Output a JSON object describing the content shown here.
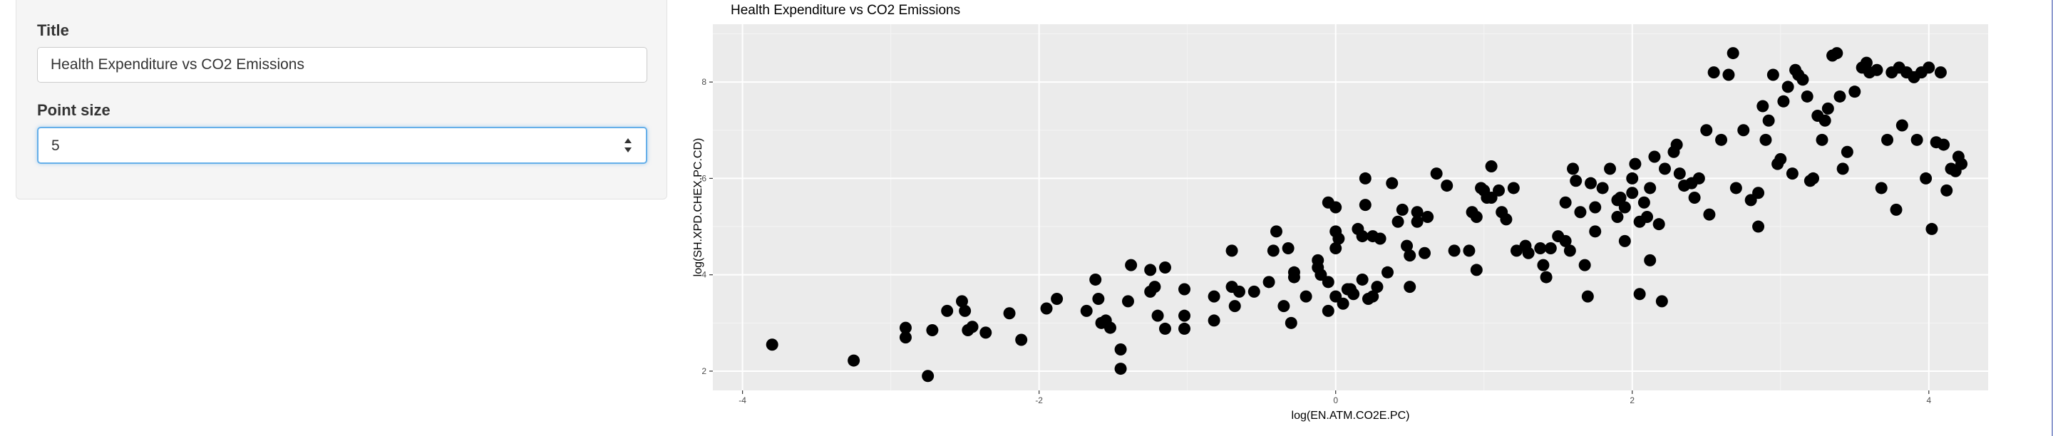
{
  "sidebar": {
    "title_label": "Title",
    "title_value": "Health Expenditure vs CO2 Emissions",
    "point_size_label": "Point size",
    "point_size_value": "5"
  },
  "chart_data": {
    "type": "scatter",
    "title": "Health Expenditure vs CO2 Emissions",
    "xlabel": "log(EN.ATM.CO2E.PC)",
    "ylabel": "log(SH.XPD.CHEX.PC.CD)",
    "xlim": [
      -4.2,
      4.4
    ],
    "ylim": [
      1.6,
      9.2
    ],
    "xticks": [
      -4,
      -2,
      0,
      2,
      4
    ],
    "xtick_labels": [
      "-4",
      "-2",
      "0",
      "2",
      "4"
    ],
    "yticks": [
      2,
      4,
      6,
      8
    ],
    "ytick_labels": [
      "2",
      "4",
      "6",
      "8"
    ],
    "grid": true,
    "background": "#ebebeb",
    "point_color": "#000000",
    "points": [
      [
        -3.8,
        2.55
      ],
      [
        -3.25,
        2.22
      ],
      [
        -2.9,
        2.9
      ],
      [
        -2.9,
        2.7
      ],
      [
        -2.75,
        1.9
      ],
      [
        -2.72,
        2.85
      ],
      [
        -2.62,
        3.25
      ],
      [
        -2.52,
        3.45
      ],
      [
        -2.5,
        3.25
      ],
      [
        -2.45,
        2.92
      ],
      [
        -2.48,
        2.85
      ],
      [
        -2.36,
        2.8
      ],
      [
        -2.2,
        3.2
      ],
      [
        -2.12,
        2.65
      ],
      [
        -1.95,
        3.3
      ],
      [
        -1.88,
        3.5
      ],
      [
        -1.68,
        3.25
      ],
      [
        -1.62,
        3.9
      ],
      [
        -1.6,
        3.5
      ],
      [
        -1.58,
        3.0
      ],
      [
        -1.52,
        2.9
      ],
      [
        -1.55,
        3.05
      ],
      [
        -1.45,
        2.05
      ],
      [
        -1.45,
        2.45
      ],
      [
        -1.4,
        3.45
      ],
      [
        -1.38,
        4.2
      ],
      [
        -1.25,
        3.65
      ],
      [
        -1.22,
        3.75
      ],
      [
        -1.25,
        4.1
      ],
      [
        -1.2,
        3.15
      ],
      [
        -1.15,
        4.15
      ],
      [
        -1.15,
        2.88
      ],
      [
        -1.02,
        3.7
      ],
      [
        -1.02,
        3.15
      ],
      [
        -1.02,
        2.88
      ],
      [
        -0.82,
        3.55
      ],
      [
        -0.82,
        3.05
      ],
      [
        -0.7,
        3.75
      ],
      [
        -0.7,
        4.5
      ],
      [
        -0.68,
        3.35
      ],
      [
        -0.65,
        3.65
      ],
      [
        -0.55,
        3.65
      ],
      [
        -0.45,
        3.85
      ],
      [
        -0.42,
        4.5
      ],
      [
        -0.4,
        4.9
      ],
      [
        -0.35,
        3.35
      ],
      [
        -0.32,
        4.55
      ],
      [
        -0.3,
        3.0
      ],
      [
        -0.28,
        3.95
      ],
      [
        -0.28,
        4.05
      ],
      [
        -0.2,
        3.55
      ],
      [
        -0.12,
        4.15
      ],
      [
        -0.12,
        4.3
      ],
      [
        -0.1,
        4.0
      ],
      [
        -0.05,
        3.25
      ],
      [
        -0.05,
        3.85
      ],
      [
        -0.05,
        5.5
      ],
      [
        0.0,
        4.9
      ],
      [
        0.0,
        5.4
      ],
      [
        0.0,
        3.55
      ],
      [
        0.0,
        4.55
      ],
      [
        0.02,
        4.75
      ],
      [
        0.05,
        3.4
      ],
      [
        0.08,
        3.7
      ],
      [
        0.1,
        3.7
      ],
      [
        0.12,
        3.6
      ],
      [
        0.15,
        4.95
      ],
      [
        0.18,
        3.9
      ],
      [
        0.18,
        4.8
      ],
      [
        0.2,
        6.0
      ],
      [
        0.2,
        5.45
      ],
      [
        0.22,
        3.5
      ],
      [
        0.25,
        4.8
      ],
      [
        0.25,
        3.55
      ],
      [
        0.28,
        3.75
      ],
      [
        0.3,
        4.75
      ],
      [
        0.35,
        4.05
      ],
      [
        0.38,
        5.9
      ],
      [
        0.42,
        5.1
      ],
      [
        0.45,
        5.35
      ],
      [
        0.48,
        4.6
      ],
      [
        0.5,
        3.75
      ],
      [
        0.5,
        4.4
      ],
      [
        0.55,
        5.1
      ],
      [
        0.55,
        5.3
      ],
      [
        0.6,
        4.45
      ],
      [
        0.62,
        5.2
      ],
      [
        0.68,
        6.1
      ],
      [
        0.75,
        5.85
      ],
      [
        0.8,
        4.5
      ],
      [
        0.9,
        4.5
      ],
      [
        0.92,
        5.3
      ],
      [
        0.95,
        4.1
      ],
      [
        0.95,
        5.2
      ],
      [
        0.98,
        5.8
      ],
      [
        1.0,
        5.75
      ],
      [
        1.02,
        5.6
      ],
      [
        1.05,
        6.25
      ],
      [
        1.05,
        5.6
      ],
      [
        1.1,
        5.75
      ],
      [
        1.12,
        5.3
      ],
      [
        1.15,
        5.15
      ],
      [
        1.2,
        5.8
      ],
      [
        1.22,
        4.5
      ],
      [
        1.28,
        4.6
      ],
      [
        1.3,
        4.45
      ],
      [
        1.38,
        4.55
      ],
      [
        1.4,
        4.2
      ],
      [
        1.42,
        3.95
      ],
      [
        1.45,
        4.55
      ],
      [
        1.5,
        4.8
      ],
      [
        1.55,
        4.7
      ],
      [
        1.55,
        5.5
      ],
      [
        1.58,
        4.5
      ],
      [
        1.6,
        6.2
      ],
      [
        1.62,
        5.95
      ],
      [
        1.65,
        5.3
      ],
      [
        1.68,
        4.2
      ],
      [
        1.7,
        3.55
      ],
      [
        1.72,
        5.9
      ],
      [
        1.75,
        5.4
      ],
      [
        1.75,
        4.9
      ],
      [
        1.8,
        5.8
      ],
      [
        1.85,
        6.2
      ],
      [
        1.9,
        5.2
      ],
      [
        1.9,
        5.55
      ],
      [
        1.92,
        5.6
      ],
      [
        1.95,
        5.4
      ],
      [
        1.95,
        4.7
      ],
      [
        2.0,
        5.7
      ],
      [
        2.0,
        6.0
      ],
      [
        2.02,
        6.3
      ],
      [
        2.05,
        3.6
      ],
      [
        2.05,
        5.1
      ],
      [
        2.08,
        5.5
      ],
      [
        2.1,
        5.2
      ],
      [
        2.12,
        4.3
      ],
      [
        2.12,
        5.8
      ],
      [
        2.15,
        6.45
      ],
      [
        2.18,
        5.05
      ],
      [
        2.2,
        3.45
      ],
      [
        2.22,
        6.2
      ],
      [
        2.28,
        6.55
      ],
      [
        2.3,
        6.7
      ],
      [
        2.32,
        6.1
      ],
      [
        2.35,
        5.85
      ],
      [
        2.4,
        5.9
      ],
      [
        2.42,
        5.6
      ],
      [
        2.45,
        6.0
      ],
      [
        2.5,
        7.0
      ],
      [
        2.52,
        5.25
      ],
      [
        2.55,
        8.2
      ],
      [
        2.6,
        6.8
      ],
      [
        2.65,
        8.15
      ],
      [
        2.68,
        8.6
      ],
      [
        2.7,
        5.8
      ],
      [
        2.75,
        7.0
      ],
      [
        2.8,
        5.55
      ],
      [
        2.85,
        5.7
      ],
      [
        2.85,
        5.0
      ],
      [
        2.88,
        7.5
      ],
      [
        2.9,
        6.8
      ],
      [
        2.92,
        7.2
      ],
      [
        2.95,
        8.15
      ],
      [
        2.98,
        6.3
      ],
      [
        3.0,
        6.4
      ],
      [
        3.02,
        7.6
      ],
      [
        3.05,
        7.9
      ],
      [
        3.08,
        6.1
      ],
      [
        3.1,
        8.25
      ],
      [
        3.12,
        8.15
      ],
      [
        3.15,
        8.05
      ],
      [
        3.18,
        7.7
      ],
      [
        3.2,
        5.95
      ],
      [
        3.22,
        6.0
      ],
      [
        3.25,
        7.3
      ],
      [
        3.28,
        6.8
      ],
      [
        3.3,
        7.2
      ],
      [
        3.32,
        7.45
      ],
      [
        3.35,
        8.55
      ],
      [
        3.38,
        8.6
      ],
      [
        3.4,
        7.7
      ],
      [
        3.42,
        6.2
      ],
      [
        3.45,
        6.55
      ],
      [
        3.5,
        7.8
      ],
      [
        3.55,
        8.3
      ],
      [
        3.58,
        8.4
      ],
      [
        3.6,
        8.2
      ],
      [
        3.65,
        8.25
      ],
      [
        3.68,
        5.8
      ],
      [
        3.72,
        6.8
      ],
      [
        3.75,
        8.2
      ],
      [
        3.78,
        5.35
      ],
      [
        3.8,
        8.3
      ],
      [
        3.82,
        7.1
      ],
      [
        3.85,
        8.2
      ],
      [
        3.9,
        8.1
      ],
      [
        3.92,
        6.8
      ],
      [
        3.95,
        8.2
      ],
      [
        3.98,
        6.0
      ],
      [
        4.0,
        8.3
      ],
      [
        4.02,
        4.95
      ],
      [
        4.05,
        6.75
      ],
      [
        4.08,
        8.2
      ],
      [
        4.1,
        6.7
      ],
      [
        4.12,
        5.75
      ],
      [
        4.15,
        6.2
      ],
      [
        4.18,
        6.15
      ],
      [
        4.2,
        6.45
      ],
      [
        4.22,
        6.3
      ]
    ]
  }
}
